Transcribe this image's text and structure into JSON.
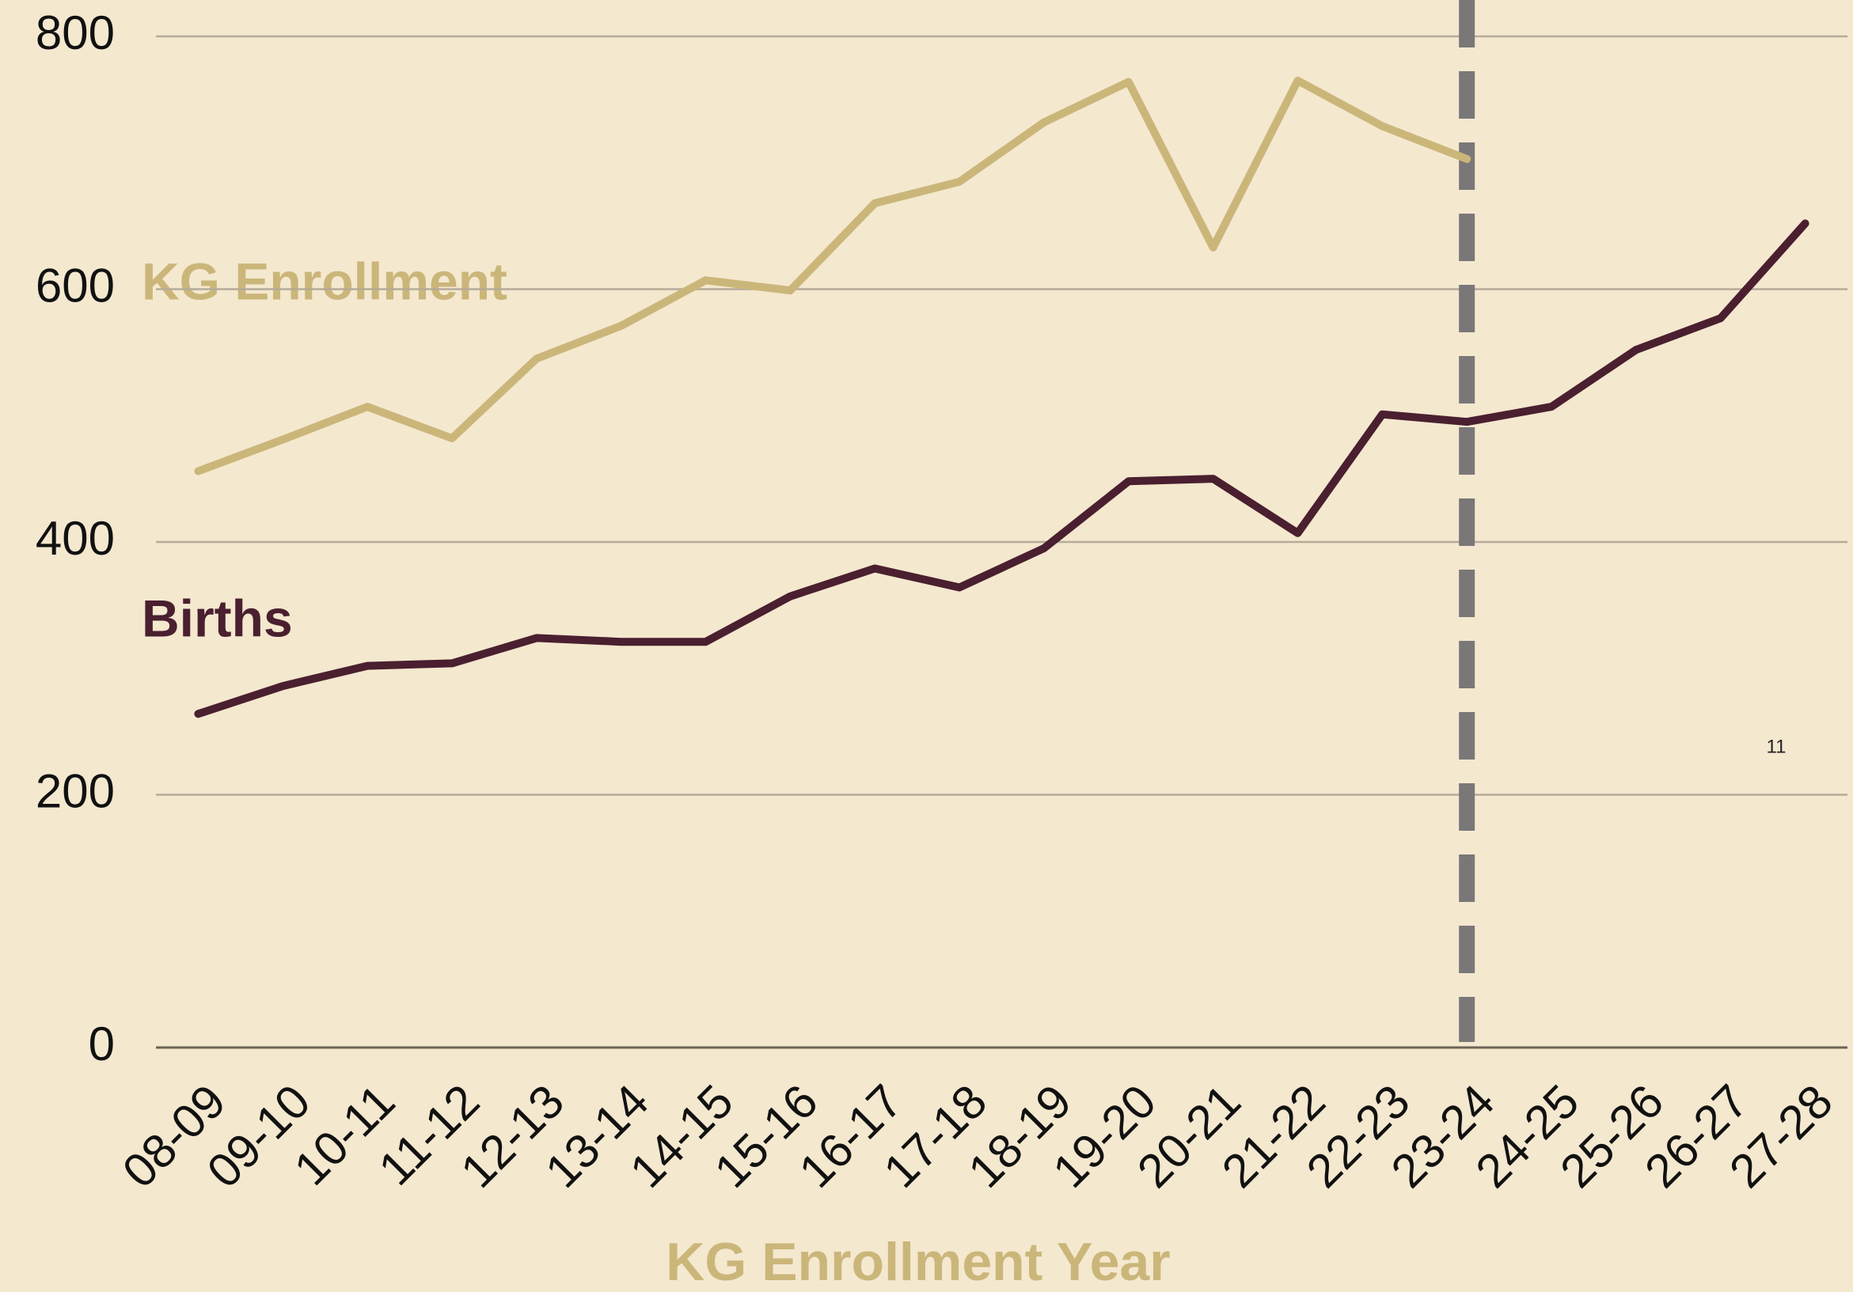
{
  "chart_data": {
    "type": "line",
    "x_label": "KG Enrollment Year",
    "annotation": "11",
    "categories": [
      "08-09",
      "09-10",
      "10-11",
      "11-12",
      "12-13",
      "13-14",
      "14-15",
      "15-16",
      "16-17",
      "17-18",
      "18-19",
      "19-20",
      "20-21",
      "21-22",
      "22-23",
      "23-24",
      "24-25",
      "25-26",
      "26-27",
      "27-28"
    ],
    "series": [
      {
        "name": "KG Enrollment",
        "color": "#cbb67a",
        "values": [
          456,
          481,
          507,
          482,
          545,
          571,
          607,
          599,
          668,
          685,
          732,
          764,
          633,
          765,
          729,
          703,
          null,
          null,
          null,
          null
        ]
      },
      {
        "name": "Births",
        "color": "#4a1f2f",
        "values": [
          264,
          286,
          302,
          304,
          324,
          321,
          321,
          357,
          379,
          364,
          395,
          448,
          450,
          407,
          501,
          495,
          507,
          552,
          577,
          652
        ]
      }
    ],
    "ylim": [
      0,
      800
    ],
    "yticks": [
      0,
      200,
      400,
      600,
      800
    ],
    "grid": true
  }
}
